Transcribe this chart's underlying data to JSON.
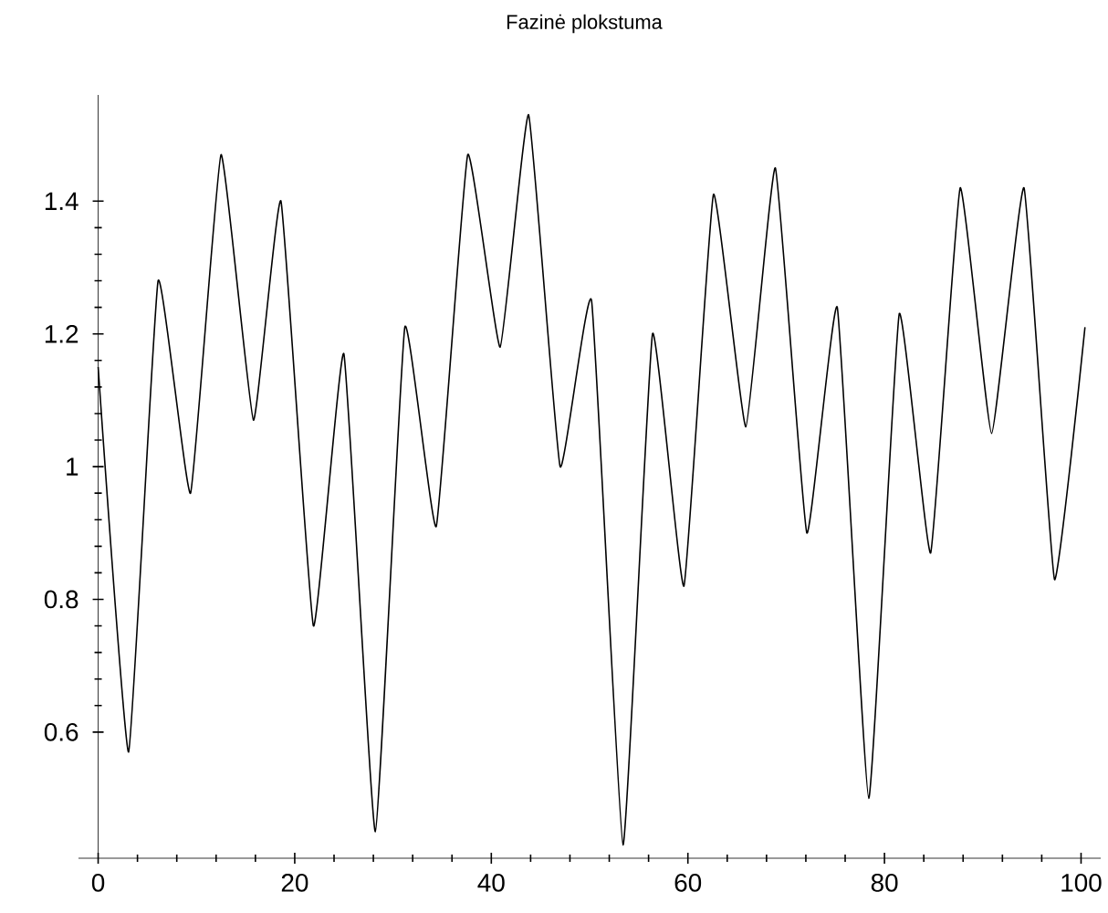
{
  "chart_data": {
    "type": "line",
    "title": "Fazinė plokstuma",
    "x": [
      0,
      3.1,
      6.1,
      9.4,
      12.5,
      15.8,
      18.6,
      21.9,
      25.0,
      28.2,
      31.2,
      34.4,
      37.6,
      40.9,
      43.8,
      47.0,
      50.2,
      53.4,
      56.4,
      59.6,
      62.6,
      65.9,
      68.9,
      72.1,
      75.2,
      78.4,
      81.5,
      84.7,
      87.7,
      90.9,
      94.2,
      97.3,
      100.4
    ],
    "values": [
      1.15,
      0.57,
      1.28,
      0.96,
      1.47,
      1.07,
      1.4,
      0.76,
      1.17,
      0.45,
      1.21,
      0.91,
      1.47,
      1.18,
      1.53,
      1.0,
      1.25,
      0.43,
      1.2,
      0.82,
      1.41,
      1.06,
      1.45,
      0.9,
      1.24,
      0.5,
      1.23,
      0.87,
      1.42,
      1.05,
      1.42,
      0.83,
      1.21
    ],
    "color": "#000000",
    "xlim": [
      -2,
      102
    ],
    "ylim": [
      0.41,
      1.56
    ],
    "xticks": [
      0,
      20,
      40,
      60,
      80,
      100
    ],
    "yticks": [
      0.6,
      0.8,
      1,
      1.2,
      1.4
    ]
  }
}
